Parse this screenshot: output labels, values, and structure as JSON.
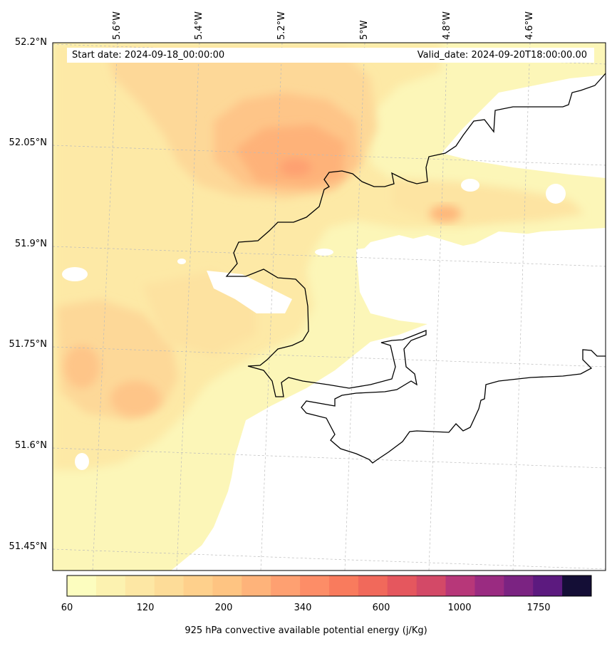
{
  "map": {
    "start_date_text": "Start date: 2024-09-18_00:00:00",
    "valid_date_text": "Valid_date: 2024-09-20T18:00:00.00",
    "lat_labels": [
      "52.2°N",
      "52.05°N",
      "51.9°N",
      "51.75°N",
      "51.6°N",
      "51.45°N"
    ],
    "lon_labels": [
      "5.6°W",
      "5.4°W",
      "5.2°W",
      "5°W",
      "4.8°W",
      "4.6°W"
    ],
    "coastline_color": "#000000",
    "sea_no_data_color": "#ffffff"
  },
  "colorbar": {
    "label": "925 hPa convective available potential energy (j/Kg)",
    "tick_labels": [
      "60",
      "120",
      "200",
      "340",
      "600",
      "1000",
      "1750"
    ],
    "colors": [
      "#fcfdbf",
      "#fcf2b0",
      "#fde7a4",
      "#fddc98",
      "#fed08c",
      "#fec482",
      "#feb37a",
      "#fea071",
      "#fd8d67",
      "#f97b5d",
      "#f1695b",
      "#e5575e",
      "#d34967",
      "#b73779",
      "#9a2b81",
      "#7b2382",
      "#5c1a7f",
      "#140e36"
    ]
  }
}
